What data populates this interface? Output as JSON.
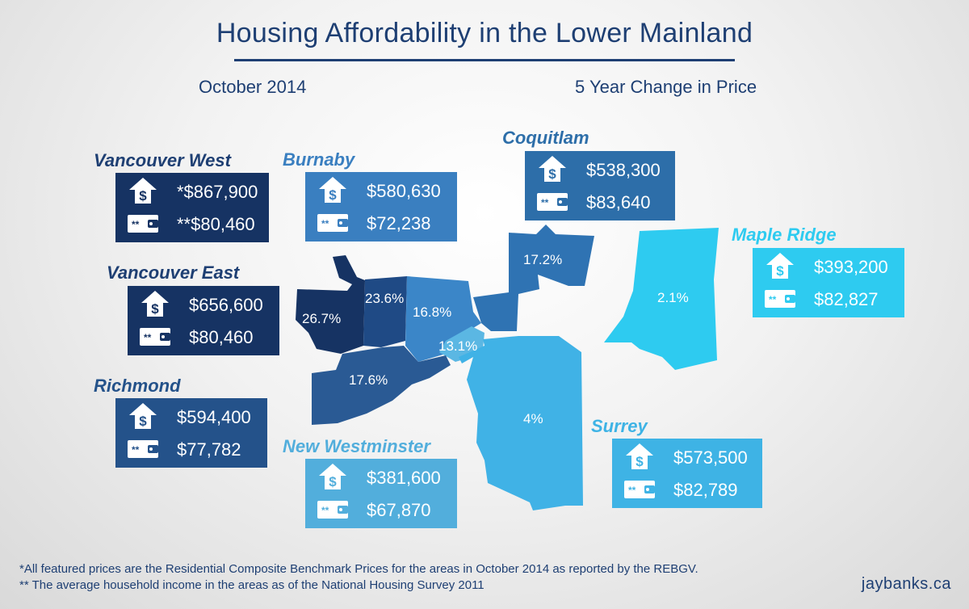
{
  "title": "Housing Affordability in the Lower Mainland",
  "date_label": "October 2014",
  "change_label": "5 Year Change in Price",
  "colors": {
    "navy": "#1e3f73",
    "dark": "#163363",
    "mid_dark": "#2a5a94",
    "mid": "#3b86c8",
    "coquitlam": "#2f73b3",
    "light": "#40b2e6",
    "sky": "#2ecbf0"
  },
  "icons": {
    "price": "house-dollar-icon",
    "income": "wallet-icon"
  },
  "regions": {
    "vancouver_west": {
      "name": "Vancouver West",
      "price": "*$867,900",
      "income": "**$80,460",
      "change": "26.7%"
    },
    "vancouver_east": {
      "name": "Vancouver East",
      "price": "$656,600",
      "income": "$80,460",
      "change": "23.6%"
    },
    "richmond": {
      "name": "Richmond",
      "price": "$594,400",
      "income": "$77,782",
      "change": "17.6%"
    },
    "burnaby": {
      "name": "Burnaby",
      "price": "$580,630",
      "income": "$72,238",
      "change": "16.8%"
    },
    "new_westminster": {
      "name": "New Westminster",
      "price": "$381,600",
      "income": "$67,870",
      "change": "13.1%"
    },
    "coquitlam": {
      "name": "Coquitlam",
      "price": "$538,300",
      "income": "$83,640",
      "change": "17.2%"
    },
    "maple_ridge": {
      "name": "Maple Ridge",
      "price": "$393,200",
      "income": "$82,827",
      "change": "2.1%"
    },
    "surrey": {
      "name": "Surrey",
      "price": "$573,500",
      "income": "$82,789",
      "change": "4%"
    }
  },
  "footnotes": [
    "*All featured prices are the Residential Composite Benchmark Prices for the areas in October 2014 as reported by the REBGV.",
    "** The average household income in the areas as of the National Housing Survey 2011"
  ],
  "credit": "jaybanks.ca"
}
